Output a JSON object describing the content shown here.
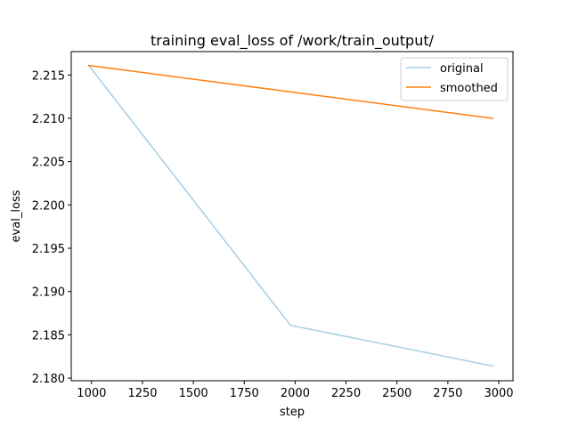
{
  "chart_data": {
    "type": "line",
    "title": "training eval_loss of /work/train_output/",
    "xlabel": "step",
    "ylabel": "eval_loss",
    "xlim": [
      900,
      3070
    ],
    "ylim": [
      2.1797,
      2.2177
    ],
    "xticks": [
      1000,
      1250,
      1500,
      1750,
      2000,
      2250,
      2500,
      2750,
      3000
    ],
    "xtick_labels": [
      "1000",
      "1250",
      "1500",
      "1750",
      "2000",
      "2250",
      "2500",
      "2750",
      "3000"
    ],
    "yticks": [
      2.18,
      2.185,
      2.19,
      2.195,
      2.2,
      2.205,
      2.21,
      2.215
    ],
    "ytick_labels": [
      "2.180",
      "2.185",
      "2.190",
      "2.195",
      "2.200",
      "2.205",
      "2.210",
      "2.215"
    ],
    "grid": false,
    "legend_position": "top-right",
    "series": [
      {
        "name": "original",
        "color": "#a6cee3",
        "x": [
          986,
          1977,
          2970
        ],
        "y": [
          2.2161,
          2.1861,
          2.1814
        ]
      },
      {
        "name": "smoothed",
        "color": "#ff7f0e",
        "x": [
          986,
          2970
        ],
        "y": [
          2.2161,
          2.21
        ]
      }
    ]
  }
}
